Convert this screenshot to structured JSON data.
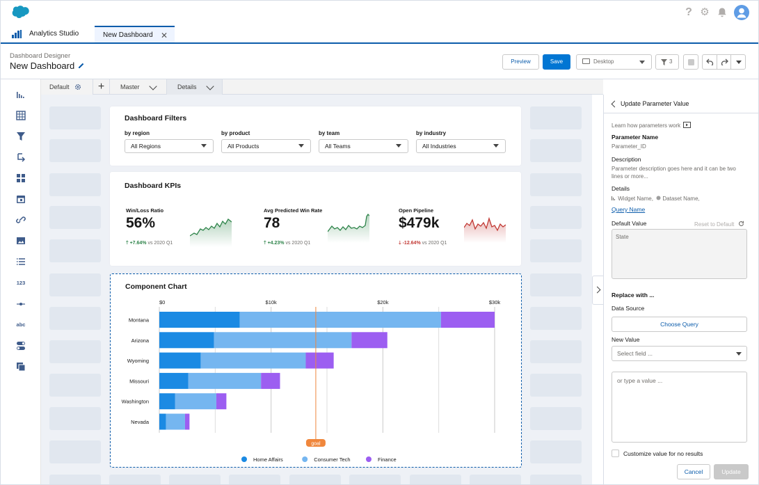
{
  "app": {
    "tab_label": "Analytics Studio",
    "open_tab_label": "New Dashboard",
    "close_glyph": "✕",
    "top_icons": [
      "help-icon",
      "gear-icon",
      "bell-icon",
      "user-avatar-icon"
    ],
    "help_glyph": "?",
    "gear_glyph": "⚙"
  },
  "header": {
    "subtitle": "Dashboard Designer",
    "title": "New Dashboard",
    "preview_label": "Preview",
    "save_label": "Save",
    "device_value": "Desktop",
    "filter_count": "3"
  },
  "left_rail": {
    "icons": [
      "bar-chart-icon",
      "table-icon",
      "filter-icon",
      "import-icon",
      "grid-icon",
      "calendar-icon",
      "link-icon",
      "image-icon",
      "list-icon",
      "number-icon",
      "slider-icon",
      "text-icon",
      "toggle-icon",
      "layers-icon"
    ],
    "number_glyph": "123",
    "text_glyph": "abc"
  },
  "page_tabs": {
    "default_label": "Default",
    "add_glyph": "+",
    "master_label": "Master",
    "details_label": "Details"
  },
  "filters_card": {
    "title": "Dashboard Filters",
    "filters": [
      {
        "label": "by region",
        "value": "All Regions"
      },
      {
        "label": "by product",
        "value": "All Products"
      },
      {
        "label": "by team",
        "value": "All Teams"
      },
      {
        "label": "by industry",
        "value": "All Industries"
      }
    ]
  },
  "kpi_card": {
    "title": "Dashboard KPIs",
    "kpis": [
      {
        "label": "Win/Loss Ratio",
        "value": "56%",
        "delta": "+7.64%",
        "vs": "vs 2020 Q1",
        "arrow": "🡑",
        "color": "#2e844a"
      },
      {
        "label": "Avg Predicted Win Rate",
        "value": "78",
        "delta": "+4.23%",
        "vs": "vs 2020 Q1",
        "arrow": "🡑",
        "color": "#2e844a"
      },
      {
        "label": "Open Pipeline",
        "value": "$479k",
        "delta": "-12.64%",
        "vs": "vs 2020 Q1",
        "arrow": "🡓",
        "color": "#c23934"
      }
    ]
  },
  "chart_data": {
    "type": "bar",
    "orientation": "horizontal",
    "stacked": true,
    "title": "Component Chart",
    "categories": [
      "Montana",
      "Arizona",
      "Wyoming",
      "Missouri",
      "Washington",
      "Nevada"
    ],
    "series": [
      {
        "name": "Home Affairs",
        "color": "#1b8ae3",
        "values": [
          7200,
          4900,
          3700,
          2600,
          1400,
          600
        ]
      },
      {
        "name": "Consumer Tech",
        "color": "#75b6f0",
        "values": [
          18000,
          12300,
          9400,
          6500,
          3700,
          1700
        ]
      },
      {
        "name": "Finance",
        "color": "#9c5ef1",
        "values": [
          4800,
          3200,
          2500,
          1700,
          900,
          400
        ]
      }
    ],
    "x_ticks": [
      "$0",
      "$10k",
      "$20k",
      "$30k"
    ],
    "x_tick_values": [
      0,
      10000,
      20000,
      30000
    ],
    "xlim": [
      0,
      30000
    ],
    "goal": {
      "label": "goal",
      "value": 14000,
      "color": "#f0873c"
    },
    "legend_position": "bottom",
    "grid": true
  },
  "right_panel": {
    "title": "Update Parameter Value",
    "learn_link": "Learn how parameters work",
    "param_name_label": "Parameter Name",
    "param_name_value": "Parameter_ID",
    "description_label": "Description",
    "description_value": "Parameter description goes here and it can be two lines or more...",
    "details_label": "Details",
    "details_widget": "Widget Name,",
    "details_dataset": "Dataset Name,",
    "details_query": "Query Name",
    "default_value_label": "Default Value",
    "reset_label": "Reset to Default",
    "state_text": "State",
    "replace_label": "Replace with ...",
    "data_source_label": "Data Source",
    "choose_query_label": "Choose Query",
    "new_value_label": "New Value",
    "select_field_placeholder": "Select field ...",
    "type_value_placeholder": "or type a value ...",
    "customize_label": "Customize value for no results",
    "cancel_label": "Cancel",
    "update_label": "Update"
  }
}
